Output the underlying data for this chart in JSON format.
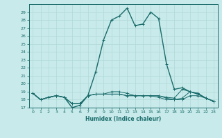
{
  "xlabel": "Humidex (Indice chaleur)",
  "ylabel": "",
  "bg_color": "#c8eaea",
  "line_color": "#1a6b6b",
  "grid_color": "#b0d8d8",
  "xlim": [
    -0.5,
    23.5
  ],
  "ylim": [
    17,
    30
  ],
  "yticks": [
    17,
    18,
    19,
    20,
    21,
    22,
    23,
    24,
    25,
    26,
    27,
    28,
    29
  ],
  "xticks": [
    0,
    1,
    2,
    3,
    4,
    5,
    6,
    7,
    8,
    9,
    10,
    11,
    12,
    13,
    14,
    15,
    16,
    17,
    18,
    19,
    20,
    21,
    22,
    23
  ],
  "series": [
    {
      "x": [
        0,
        1,
        2,
        3,
        4,
        5,
        6,
        7,
        8,
        9,
        10,
        11,
        12,
        13,
        14,
        15,
        16,
        17,
        18,
        19,
        20,
        21,
        22,
        23
      ],
      "y": [
        18.8,
        18.0,
        18.3,
        18.5,
        18.3,
        17.0,
        17.3,
        18.5,
        21.5,
        25.5,
        28.0,
        28.5,
        29.5,
        27.3,
        27.5,
        29.0,
        28.2,
        22.5,
        19.3,
        19.5,
        19.0,
        18.7,
        18.2,
        17.8
      ]
    },
    {
      "x": [
        0,
        1,
        2,
        3,
        4,
        5,
        6,
        7,
        8,
        9,
        10,
        11,
        12,
        13,
        14,
        15,
        16,
        17,
        18,
        19,
        20,
        21,
        22,
        23
      ],
      "y": [
        18.8,
        18.0,
        18.3,
        18.5,
        18.3,
        17.5,
        17.5,
        18.5,
        18.7,
        18.7,
        18.7,
        18.7,
        18.5,
        18.5,
        18.5,
        18.5,
        18.5,
        18.2,
        18.0,
        18.0,
        18.5,
        18.5,
        18.2,
        17.8
      ]
    },
    {
      "x": [
        0,
        1,
        2,
        3,
        4,
        5,
        6,
        7,
        8,
        9,
        10,
        11,
        12,
        13,
        14,
        15,
        16,
        17,
        18,
        19,
        20,
        21,
        22,
        23
      ],
      "y": [
        18.8,
        18.0,
        18.3,
        18.5,
        18.3,
        17.5,
        17.5,
        18.5,
        18.7,
        18.7,
        18.7,
        18.7,
        18.5,
        18.5,
        18.5,
        18.5,
        18.3,
        18.0,
        18.0,
        18.2,
        19.0,
        18.8,
        18.2,
        17.8
      ]
    },
    {
      "x": [
        0,
        1,
        2,
        3,
        4,
        5,
        6,
        7,
        8,
        9,
        10,
        11,
        12,
        13,
        14,
        15,
        16,
        17,
        18,
        19,
        20,
        21,
        22,
        23
      ],
      "y": [
        18.8,
        18.0,
        18.3,
        18.5,
        18.3,
        17.5,
        17.5,
        18.5,
        18.7,
        18.7,
        19.0,
        19.0,
        18.8,
        18.5,
        18.5,
        18.5,
        18.5,
        18.3,
        18.2,
        19.3,
        19.0,
        18.8,
        18.2,
        17.8
      ]
    }
  ]
}
